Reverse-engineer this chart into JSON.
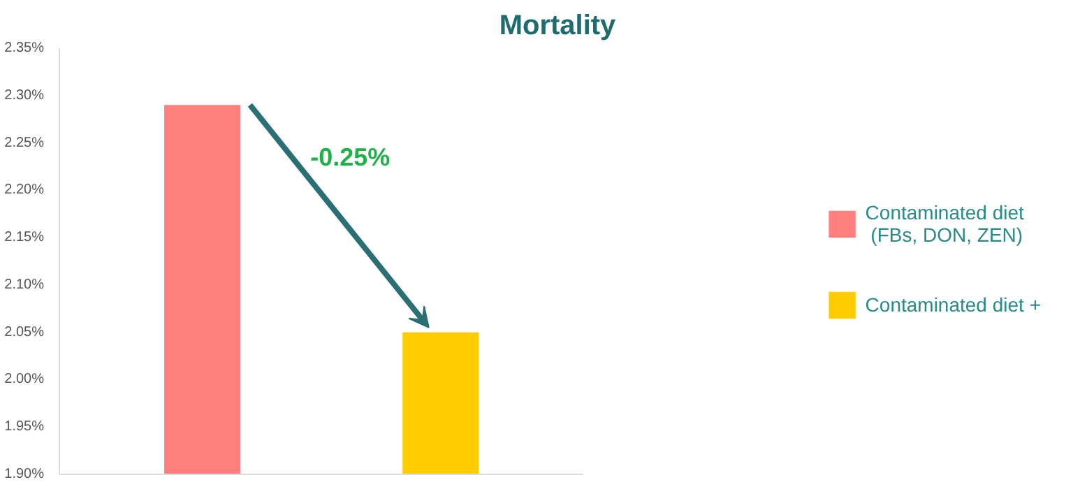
{
  "chart_data": {
    "type": "bar",
    "title": "Mortality",
    "categories": [
      null,
      null
    ],
    "series": [
      {
        "name": "Contaminated diet\n (FBs, DON, ZEN)",
        "color": "#ff7f7f",
        "values": [
          2.29,
          null
        ]
      },
      {
        "name": "Contaminated diet +",
        "color": "#ffcc00",
        "values": [
          null,
          2.05
        ]
      }
    ],
    "ylim": [
      1.9,
      2.35
    ],
    "yticks": [
      {
        "value": 1.9,
        "label": "1.90%"
      },
      {
        "value": 1.95,
        "label": "1.95%"
      },
      {
        "value": 2.0,
        "label": "2.00%"
      },
      {
        "value": 2.05,
        "label": "2.05%"
      },
      {
        "value": 2.1,
        "label": "2.10%"
      },
      {
        "value": 2.15,
        "label": "2.15%"
      },
      {
        "value": 2.2,
        "label": "2.20%"
      },
      {
        "value": 2.25,
        "label": "2.25%"
      },
      {
        "value": 2.3,
        "label": "2.30%"
      },
      {
        "value": 2.35,
        "label": "2.35%"
      }
    ],
    "annotations": [
      "-0.25%"
    ],
    "grid": false,
    "legend": "right"
  }
}
